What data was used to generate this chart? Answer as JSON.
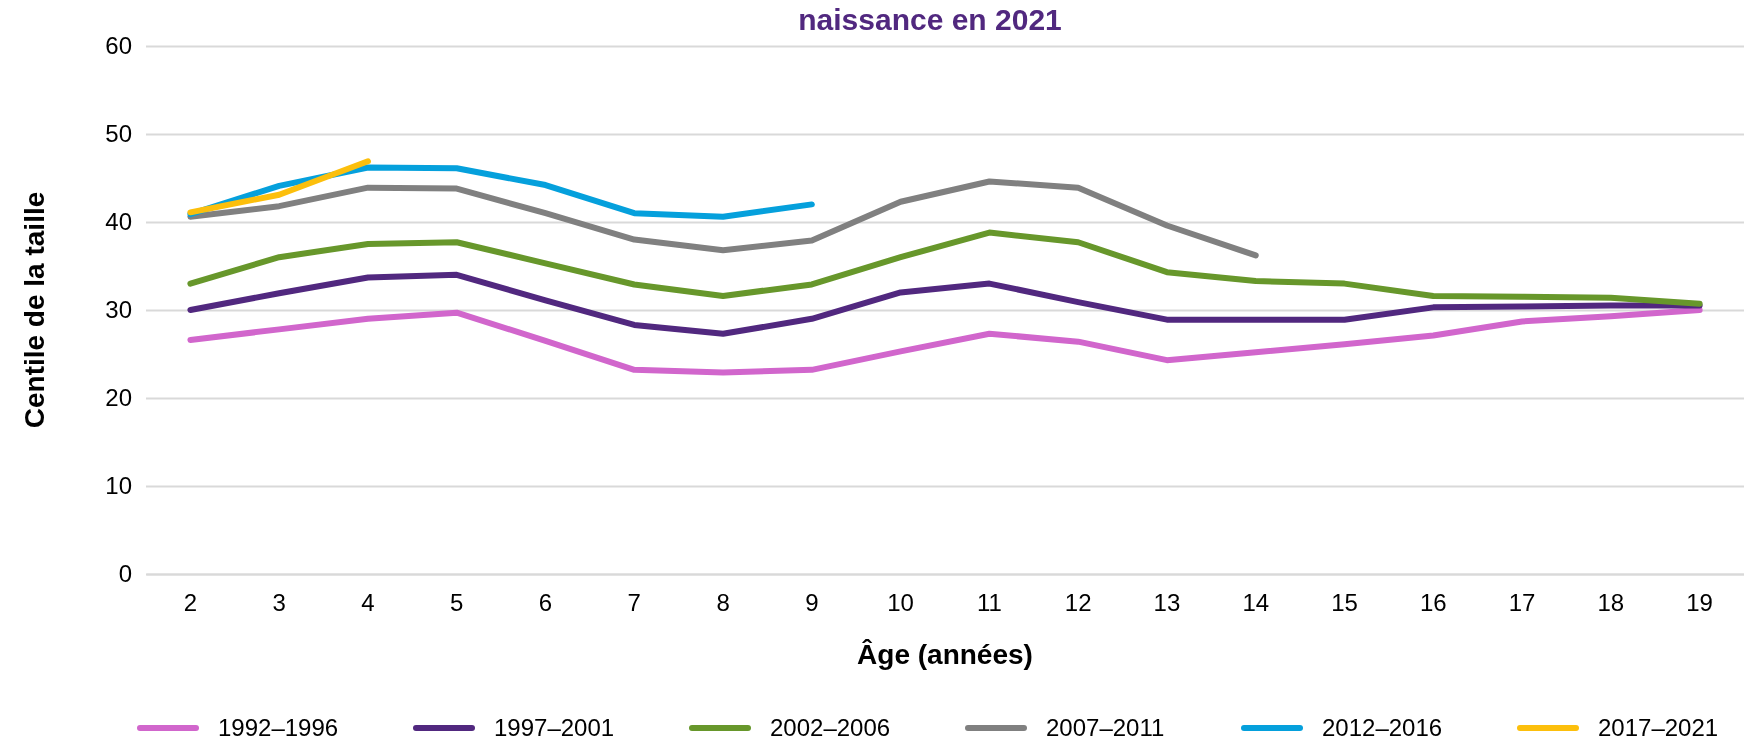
{
  "chart_data": {
    "type": "line",
    "title": "naissance en 2021",
    "xlabel": "Âge (années)",
    "ylabel": "Centile de la taille",
    "categories": [
      "2",
      "3",
      "4",
      "5",
      "6",
      "7",
      "8",
      "9",
      "10",
      "11",
      "12",
      "13",
      "14",
      "15",
      "16",
      "17",
      "18",
      "19"
    ],
    "series": [
      {
        "name": "1992–1996",
        "color": "#d166cc",
        "values": [
          26.6,
          27.8,
          29,
          29.7,
          26.5,
          23.2,
          22.9,
          23.2,
          25.3,
          27.3,
          26.4,
          24.3,
          25.2,
          26.1,
          27.1,
          28.7,
          29.3,
          30
        ]
      },
      {
        "name": "1997–2001",
        "color": "#51287f",
        "values": [
          30,
          31.9,
          33.7,
          34,
          31.1,
          28.3,
          27.3,
          29,
          32,
          33,
          30.9,
          28.9,
          28.9,
          28.9,
          30.3,
          30.4,
          30.5,
          30.5
        ]
      },
      {
        "name": "2002–2006",
        "color": "#67972b",
        "values": [
          33,
          36,
          37.5,
          37.7,
          35.3,
          32.9,
          31.6,
          32.9,
          36,
          38.8,
          37.7,
          34.3,
          33.3,
          33,
          31.6,
          31.5,
          31.4,
          30.7
        ]
      },
      {
        "name": "2007–2011",
        "color": "#808080",
        "values": [
          40.6,
          41.8,
          43.9,
          43.8,
          41,
          38,
          36.8,
          37.9,
          42.3,
          44.6,
          43.9,
          39.6,
          36.2,
          null,
          null,
          null,
          null,
          null
        ]
      },
      {
        "name": "2012–2016",
        "color": "#05a0dc",
        "values": [
          40.9,
          44.1,
          46.2,
          46.1,
          44.2,
          41,
          40.6,
          42,
          null,
          null,
          null,
          null,
          null,
          null,
          null,
          null,
          null,
          null
        ]
      },
      {
        "name": "2017–2021",
        "color": "#fcbf0c",
        "values": [
          41.1,
          43.1,
          46.9,
          null,
          null,
          null,
          null,
          null,
          null,
          null,
          null,
          null,
          null,
          null,
          null,
          null,
          null,
          null
        ]
      }
    ],
    "ylim": [
      0,
      60
    ],
    "yticks": [
      0,
      10,
      20,
      30,
      40,
      50,
      60
    ],
    "grid": "y",
    "legend": "bottom"
  }
}
